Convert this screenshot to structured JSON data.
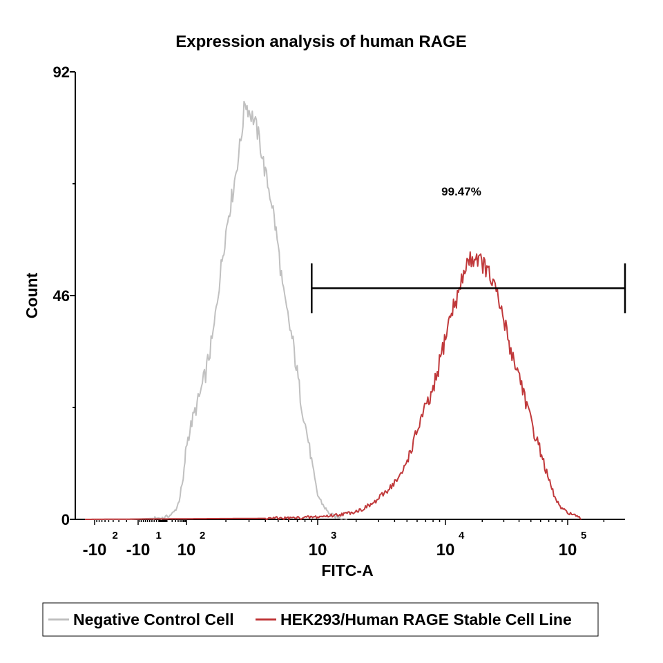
{
  "chart_data": {
    "type": "area",
    "title": "Expression analysis of human RAGE",
    "xlabel": "FITC-A",
    "ylabel": "Count",
    "x_scale": "biexponential (log above 100)",
    "xlim": [
      -200,
      300000
    ],
    "ylim": [
      0,
      92
    ],
    "y_ticks": [
      {
        "value": 0,
        "label": "0"
      },
      {
        "value": 46,
        "label": "46"
      },
      {
        "value": 92,
        "label": "92"
      }
    ],
    "x_ticks": [
      {
        "value": -100,
        "base": "-10",
        "exp": "2"
      },
      {
        "value": -10,
        "base": "-10",
        "exp": "1"
      },
      {
        "value": 100,
        "base": "10",
        "exp": "2"
      },
      {
        "value": 1000,
        "base": "10",
        "exp": "3"
      },
      {
        "value": 10000,
        "base": "10",
        "exp": "4"
      },
      {
        "value": 100000,
        "base": "10",
        "exp": "5"
      }
    ],
    "gate": {
      "x_start": 900,
      "x_end": 300000,
      "y": 47.5,
      "label": "99.47%"
    },
    "grid": false,
    "legend_position": "bottom",
    "series": [
      {
        "name": "Negative Control Cell",
        "color": "#c0c0c0",
        "points": [
          [
            -150,
            0
          ],
          [
            -50,
            0
          ],
          [
            -15,
            0
          ],
          [
            5,
            0.3
          ],
          [
            15,
            0.8
          ],
          [
            25,
            1.5
          ],
          [
            35,
            2.5
          ],
          [
            45,
            4
          ],
          [
            55,
            6
          ],
          [
            70,
            8
          ],
          [
            85,
            12
          ],
          [
            95,
            15
          ],
          [
            110,
            20
          ],
          [
            125,
            25
          ],
          [
            140,
            30
          ],
          [
            160,
            38
          ],
          [
            175,
            47
          ],
          [
            190,
            55
          ],
          [
            210,
            63
          ],
          [
            225,
            67
          ],
          [
            240,
            72
          ],
          [
            260,
            78
          ],
          [
            280,
            86
          ],
          [
            300,
            84
          ],
          [
            330,
            82
          ],
          [
            360,
            78
          ],
          [
            400,
            71
          ],
          [
            450,
            65
          ],
          [
            500,
            56
          ],
          [
            550,
            46
          ],
          [
            650,
            36
          ],
          [
            750,
            24
          ],
          [
            850,
            16
          ],
          [
            950,
            8
          ],
          [
            1000,
            5
          ],
          [
            1100,
            3
          ],
          [
            1200,
            1.5
          ],
          [
            1350,
            0.6
          ],
          [
            1500,
            0.3
          ],
          [
            1700,
            0
          ]
        ]
      },
      {
        "name": "HEK293/Human RAGE Stable Cell Line",
        "color": "#c0393b",
        "points": [
          [
            -150,
            0
          ],
          [
            400,
            0.2
          ],
          [
            700,
            0.3
          ],
          [
            1000,
            0.5
          ],
          [
            1300,
            0.8
          ],
          [
            1700,
            1.2
          ],
          [
            2200,
            2
          ],
          [
            2800,
            3.5
          ],
          [
            3500,
            6
          ],
          [
            4500,
            9
          ],
          [
            5500,
            15
          ],
          [
            6500,
            21
          ],
          [
            8000,
            26
          ],
          [
            9500,
            35
          ],
          [
            11000,
            42
          ],
          [
            13000,
            47
          ],
          [
            15000,
            53
          ],
          [
            18000,
            54
          ],
          [
            21000,
            52
          ],
          [
            25000,
            48
          ],
          [
            30000,
            41
          ],
          [
            35000,
            34
          ],
          [
            42000,
            28
          ],
          [
            50000,
            20
          ],
          [
            60000,
            14
          ],
          [
            70000,
            8
          ],
          [
            80000,
            4
          ],
          [
            90000,
            2
          ],
          [
            110000,
            1
          ],
          [
            130000,
            0
          ]
        ]
      }
    ]
  }
}
